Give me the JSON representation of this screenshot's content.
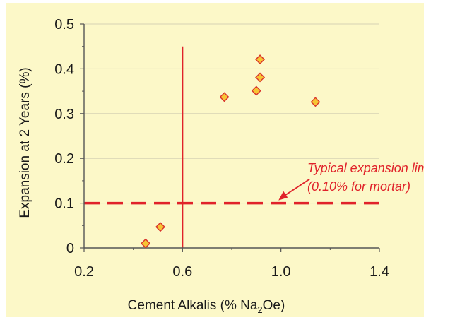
{
  "chart_data": {
    "type": "scatter",
    "xlabel": {
      "main": "Cement Alkalis (% Na",
      "sub": "2",
      "tail": "Oe)"
    },
    "ylabel": "Expansion at 2 Years (%)",
    "xlim": [
      0.2,
      1.4
    ],
    "ylim": [
      0,
      0.5
    ],
    "xticks": [
      "0.2",
      "0.6",
      "1.0",
      "1.4"
    ],
    "yticks": [
      "0",
      "0.1",
      "0.2",
      "0.3",
      "0.4",
      "0.5"
    ],
    "grid": "horizontal",
    "points": [
      {
        "x": 0.45,
        "y": 0.01
      },
      {
        "x": 0.51,
        "y": 0.047
      },
      {
        "x": 0.77,
        "y": 0.337
      },
      {
        "x": 0.9,
        "y": 0.351
      },
      {
        "x": 0.915,
        "y": 0.381
      },
      {
        "x": 0.915,
        "y": 0.421
      },
      {
        "x": 1.14,
        "y": 0.326
      }
    ],
    "reference_lines": {
      "vertical_x": 0.6,
      "vertical_y_range": [
        0,
        0.45
      ],
      "horizontal_dashed_y": 0.1
    },
    "annotation": {
      "line1": "Typical expansion limit",
      "line2": "(0.10% for mortar)",
      "arrow_target": {
        "x": 0.99,
        "y": 0.1
      }
    },
    "colors": {
      "background": "#fcf8c8",
      "marker_fill": "#f7c433",
      "marker_stroke": "#d9332b",
      "reference": "#e0222a",
      "grid": "#d6d2b4",
      "axis": "#555555"
    }
  }
}
